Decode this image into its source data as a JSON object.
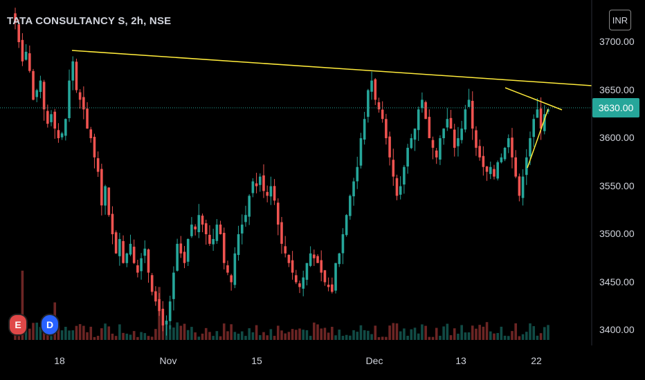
{
  "header": {
    "title": "TATA CONSULTANCY S, 2h, NSE",
    "currency": "INR"
  },
  "last_price_label": "3630.00",
  "markers": {
    "earnings": "E",
    "dividend": "D"
  },
  "colors": {
    "up": "#26a69a",
    "down": "#ef5350",
    "trendline": "#ffeb3b",
    "background": "#000000"
  },
  "chart_data": {
    "type": "candlestick",
    "y_ticks": [
      "3700.00",
      "3650.00",
      "3600.00",
      "3550.00",
      "3500.00",
      "3450.00",
      "3400.00"
    ],
    "x_ticks": [
      "18",
      "Nov",
      "15",
      "Dec",
      "13",
      "22"
    ],
    "last_price": 3630.0,
    "ylim": [
      3380,
      3730
    ],
    "close": [
      3720,
      3700,
      3680,
      3690,
      3670,
      3640,
      3650,
      3660,
      3630,
      3615,
      3625,
      3610,
      3600,
      3605,
      3620,
      3660,
      3680,
      3650,
      3640,
      3630,
      3610,
      3600,
      3580,
      3565,
      3530,
      3550,
      3520,
      3500,
      3480,
      3495,
      3470,
      3480,
      3490,
      3470,
      3460,
      3475,
      3485,
      3460,
      3440,
      3430,
      3420,
      3405,
      3410,
      3430,
      3460,
      3490,
      3480,
      3470,
      3495,
      3510,
      3505,
      3520,
      3510,
      3500,
      3490,
      3495,
      3510,
      3500,
      3470,
      3460,
      3450,
      3480,
      3500,
      3510,
      3520,
      3540,
      3555,
      3550,
      3560,
      3545,
      3540,
      3550,
      3535,
      3510,
      3490,
      3480,
      3470,
      3460,
      3450,
      3445,
      3455,
      3470,
      3480,
      3475,
      3470,
      3460,
      3450,
      3445,
      3440,
      3470,
      3480,
      3500,
      3520,
      3540,
      3555,
      3570,
      3600,
      3620,
      3650,
      3660,
      3640,
      3630,
      3620,
      3600,
      3580,
      3560,
      3540,
      3550,
      3570,
      3590,
      3600,
      3610,
      3630,
      3640,
      3620,
      3600,
      3590,
      3580,
      3600,
      3610,
      3620,
      3610,
      3590,
      3600,
      3610,
      3630,
      3640,
      3610,
      3590,
      3580,
      3570,
      3565,
      3570,
      3560,
      3575,
      3580,
      3590,
      3600,
      3580,
      3560,
      3540,
      3560,
      3580,
      3600,
      3620,
      3630,
      3610,
      3625,
      3630
    ]
  }
}
